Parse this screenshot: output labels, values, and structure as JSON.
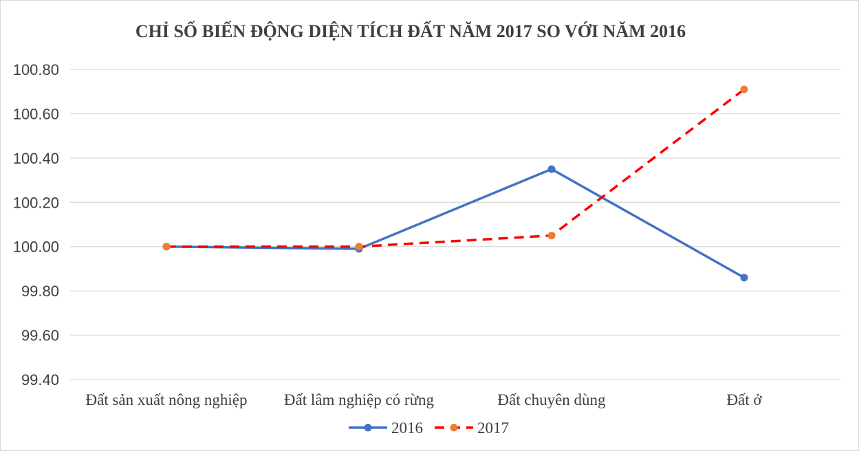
{
  "chart_data": {
    "type": "line",
    "title": "CHỈ SỐ BIẾN ĐỘNG DIỆN TÍCH ĐẤT NĂM 2017 SO VỚI NĂM 2016",
    "categories": [
      "Đất sản xuất nông nghiệp",
      "Đất lâm nghiệp có rừng",
      "Đất chuyên dùng",
      "Đất ở"
    ],
    "series": [
      {
        "name": "2016",
        "values": [
          100.0,
          99.99,
          100.35,
          99.86
        ],
        "line_color": "#4472c4",
        "marker_color": "#4472c4",
        "dashed": false
      },
      {
        "name": "2017",
        "values": [
          100.0,
          100.0,
          100.05,
          100.71
        ],
        "line_color": "#ff0000",
        "marker_color": "#ed7d31",
        "dashed": true
      }
    ],
    "yticks": [
      "100.80",
      "100.60",
      "100.40",
      "100.20",
      "100.00",
      "99.80",
      "99.60",
      "99.40"
    ],
    "ylim": [
      99.4,
      100.8
    ],
    "xlabel": "",
    "ylabel": "",
    "grid": true,
    "legend": "bottom"
  }
}
